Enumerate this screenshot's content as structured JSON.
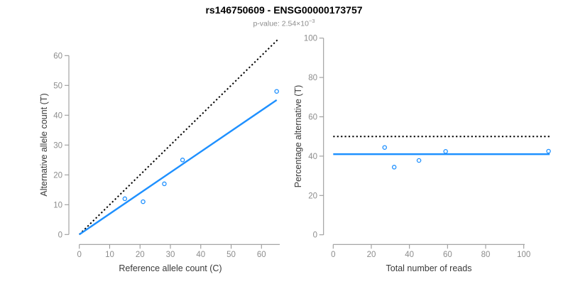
{
  "header": {
    "title": "rs146750609 - ENSG00000173757",
    "pvalue_prefix": "p-value: 2.54×10",
    "pvalue_exponent": "−3"
  },
  "colors": {
    "accent_blue": "#1E90FF",
    "dotted_black": "#000000",
    "axis_line_gray": "#9a9a9a",
    "tick_label_gray": "#8c8c8c",
    "axis_title_gray": "#3a3a3a",
    "subtitle_gray": "#8c8c8c"
  },
  "chart_data": [
    {
      "type": "scatter",
      "title": "rs146750609 - ENSG00000173757",
      "xlabel": "Reference allele count (C)",
      "ylabel": "Alternative allele count (T)",
      "xlim": [
        0,
        65
      ],
      "ylim": [
        0,
        65
      ],
      "xticks": [
        0,
        10,
        20,
        30,
        40,
        50,
        60
      ],
      "yticks": [
        0,
        10,
        20,
        30,
        40,
        50,
        60
      ],
      "grid": false,
      "legend": false,
      "points": [
        [
          15,
          12
        ],
        [
          21,
          11
        ],
        [
          28,
          17
        ],
        [
          34,
          25
        ],
        [
          65,
          48
        ]
      ],
      "lines": [
        {
          "name": "identity-line",
          "style": "dotted",
          "color": "#000000",
          "x1": 0,
          "y1": 0,
          "x2": 65.3,
          "y2": 65.3
        },
        {
          "name": "fit-line",
          "style": "solid",
          "color": "#1E90FF",
          "x1": 0,
          "y1": 0,
          "x2": 65,
          "y2": 45.1
        }
      ]
    },
    {
      "type": "scatter",
      "xlabel": "Total number of reads",
      "ylabel": "Percentage alternative (T)",
      "xlim": [
        0,
        114
      ],
      "ylim": [
        0,
        100
      ],
      "xticks": [
        0,
        20,
        40,
        60,
        80,
        100
      ],
      "yticks": [
        0,
        20,
        40,
        60,
        80,
        100
      ],
      "grid": false,
      "legend": false,
      "points": [
        [
          27,
          44.4
        ],
        [
          32,
          34.4
        ],
        [
          45,
          37.8
        ],
        [
          59,
          42.4
        ],
        [
          113,
          42.5
        ]
      ],
      "lines": [
        {
          "name": "expected-percentage-line",
          "style": "dotted",
          "color": "#000000",
          "x1": 0,
          "y1": 50,
          "x2": 113.6,
          "y2": 50
        },
        {
          "name": "mean-percentage-line",
          "style": "solid",
          "color": "#1E90FF",
          "x1": 0,
          "y1": 41,
          "x2": 113.6,
          "y2": 41
        }
      ]
    }
  ]
}
